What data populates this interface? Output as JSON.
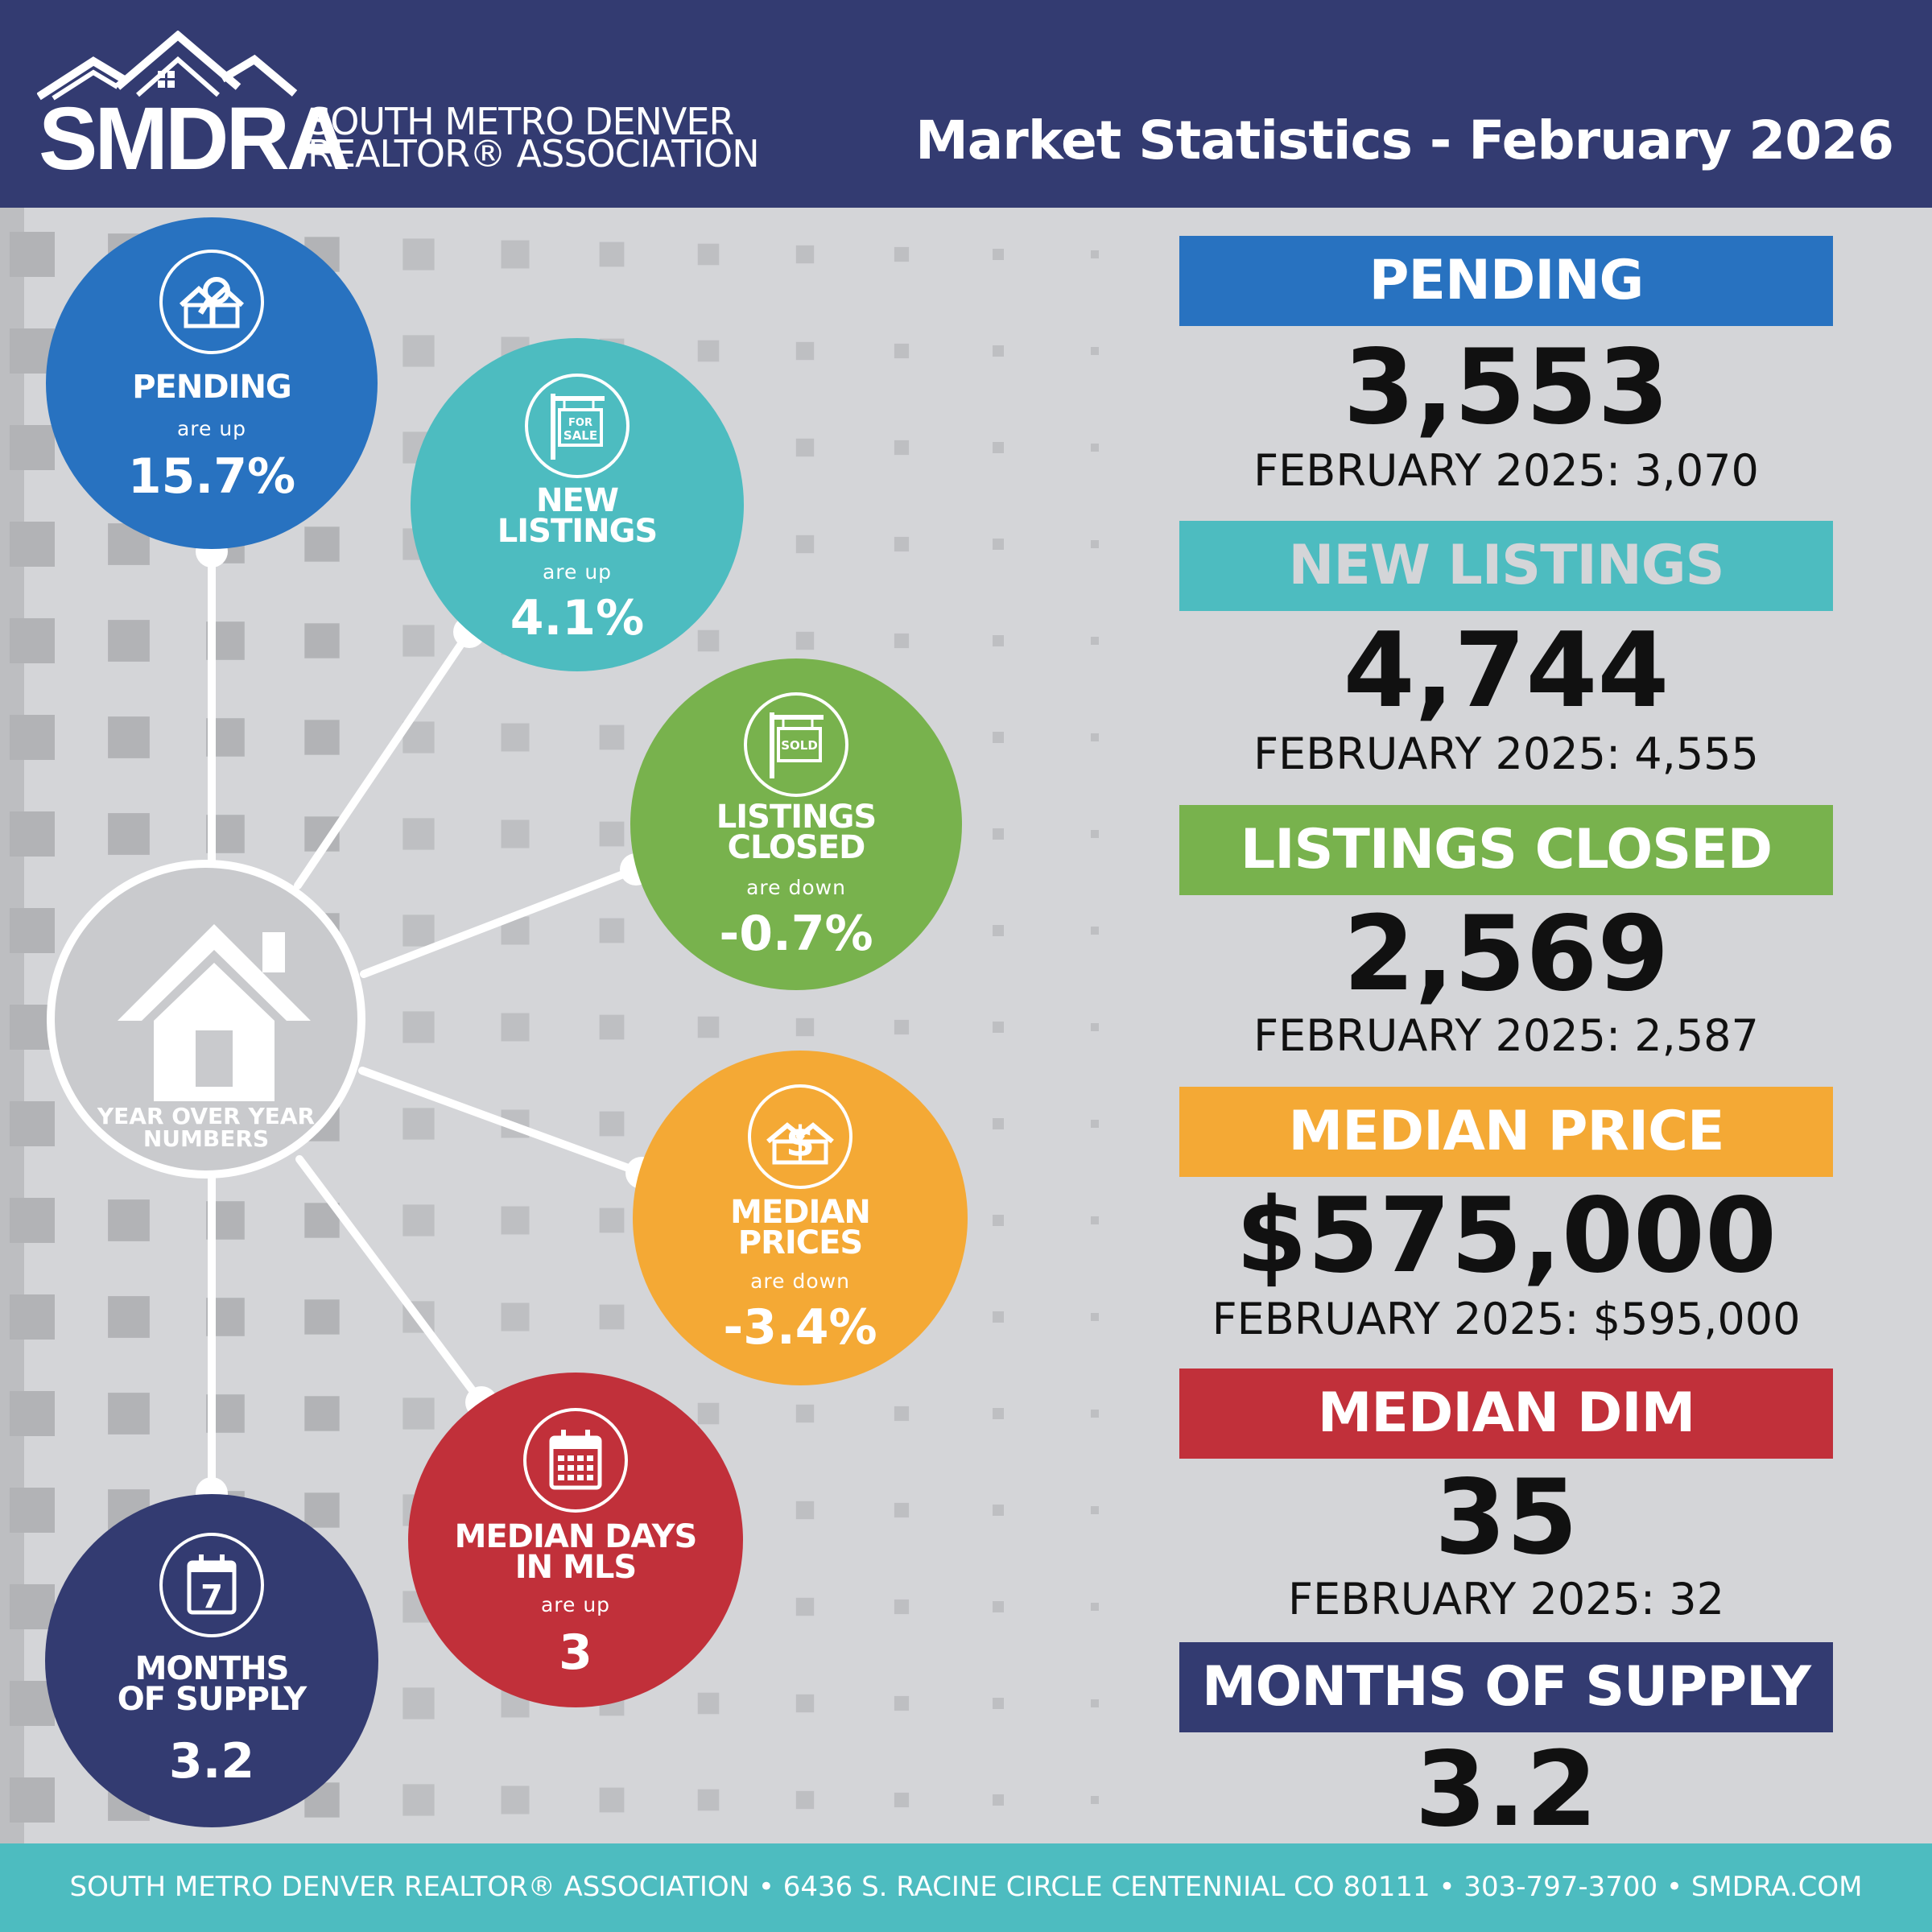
{
  "header": {
    "logo_text": "SMDRA",
    "org_line1": "SOUTH METRO DENVER",
    "org_line2": "REALTOR® ASSOCIATION",
    "title": "Market Statistics - February 2026"
  },
  "hub": {
    "label_line1": "YEAR OVER YEAR",
    "label_line2": "NUMBERS"
  },
  "bubbles": {
    "pending": {
      "title": "PENDING",
      "direction": "are up",
      "value": "15.7%",
      "color": "#2872c0"
    },
    "new_listings": {
      "title_line1": "NEW",
      "title_line2": "LISTINGS",
      "direction": "are up",
      "value": "4.1%",
      "color": "#4dbcc0",
      "icon_text1": "FOR",
      "icon_text2": "SALE"
    },
    "listings_closed": {
      "title_line1": "LISTINGS",
      "title_line2": "CLOSED",
      "direction": "are down",
      "value": "-0.7%",
      "color": "#78b24d",
      "icon_text": "SOLD"
    },
    "median_prices": {
      "title_line1": "MEDIAN",
      "title_line2": "PRICES",
      "direction": "are down",
      "value": "-3.4%",
      "color": "#f4a935"
    },
    "median_days": {
      "title_line1": "MEDIAN DAYS",
      "title_line2": "IN MLS",
      "direction": "are up",
      "value": "3",
      "color": "#c1303a"
    },
    "months_supply": {
      "title_line1": "MONTHS",
      "title_line2": "OF SUPPLY",
      "value": "3.2",
      "color": "#333b71",
      "icon_text": "7"
    }
  },
  "stats": {
    "pending": {
      "heading": "PENDING",
      "value": "3,553",
      "previous": "FEBRUARY 2025: 3,070",
      "color": "#2872c0"
    },
    "new_listings": {
      "heading": "NEW LISTINGS",
      "value": "4,744",
      "previous": "FEBRUARY 2025: 4,555",
      "color": "#4dbcc0"
    },
    "listings_closed": {
      "heading": "LISTINGS CLOSED",
      "value": "2,569",
      "previous": "FEBRUARY 2025: 2,587",
      "color": "#78b24d"
    },
    "median_price": {
      "heading": "MEDIAN PRICE",
      "value": "$575,000",
      "previous": "FEBRUARY 2025: $595,000",
      "color": "#f4a935"
    },
    "median_dim": {
      "heading": "MEDIAN DIM",
      "value": "35",
      "previous": "FEBRUARY 2025: 32",
      "color": "#c1303a"
    },
    "months_supply": {
      "heading": "MONTHS OF SUPPLY",
      "value": "3.2",
      "color": "#333b71"
    }
  },
  "footer": {
    "text": "SOUTH METRO DENVER REALTOR® ASSOCIATION • 6436 S. RACINE CIRCLE CENTENNIAL CO 80111 •  303-797-3700 • SMDRA.COM"
  }
}
